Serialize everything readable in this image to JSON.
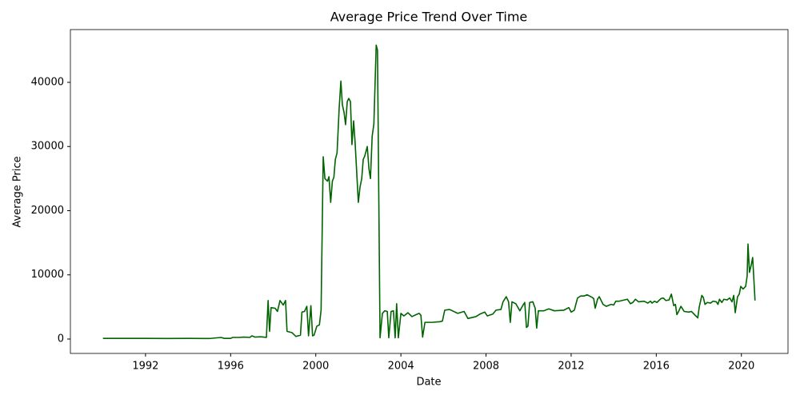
{
  "chart_data": {
    "type": "line",
    "title": "Average Price Trend Over Time",
    "x_label": "Date",
    "y_label": "Average Price",
    "color": "#006400",
    "x": [
      1990.0,
      1991.0,
      1992.0,
      1993.0,
      1994.0,
      1995.0,
      1995.55,
      1995.7,
      1996.0,
      1996.1,
      1996.4,
      1996.6,
      1996.9,
      1997.0,
      1997.15,
      1997.4,
      1997.55,
      1997.68,
      1997.76,
      1997.83,
      1997.9,
      1998.09,
      1998.2,
      1998.32,
      1998.47,
      1998.58,
      1998.65,
      1998.88,
      1999.07,
      1999.28,
      1999.35,
      1999.47,
      1999.58,
      1999.66,
      1999.77,
      1999.85,
      1999.92,
      2000.05,
      2000.17,
      2000.25,
      2000.35,
      2000.43,
      2000.55,
      2000.62,
      2000.7,
      2000.78,
      2000.85,
      2000.92,
      2001.0,
      2001.1,
      2001.18,
      2001.25,
      2001.33,
      2001.4,
      2001.48,
      2001.55,
      2001.63,
      2001.7,
      2001.78,
      2001.85,
      2002.0,
      2002.08,
      2002.16,
      2002.23,
      2002.3,
      2002.42,
      2002.5,
      2002.57,
      2002.65,
      2002.73,
      2002.84,
      2002.9,
      2003.02,
      2003.13,
      2003.24,
      2003.36,
      2003.43,
      2003.54,
      2003.65,
      2003.73,
      2003.8,
      2003.88,
      2004.0,
      2004.14,
      2004.33,
      2004.52,
      2004.71,
      2004.86,
      2004.94,
      2005.02,
      2005.13,
      2005.46,
      2005.84,
      2005.95,
      2006.06,
      2006.29,
      2006.67,
      2006.97,
      2007.15,
      2007.53,
      2007.72,
      2007.94,
      2008.06,
      2008.32,
      2008.47,
      2008.7,
      2008.8,
      2008.95,
      2009.06,
      2009.14,
      2009.22,
      2009.4,
      2009.59,
      2009.74,
      2009.82,
      2009.9,
      2009.97,
      2010.05,
      2010.2,
      2010.31,
      2010.38,
      2010.46,
      2010.72,
      2010.95,
      2011.21,
      2011.66,
      2011.89,
      2012.0,
      2012.15,
      2012.3,
      2012.45,
      2012.6,
      2012.75,
      2012.98,
      2013.06,
      2013.13,
      2013.24,
      2013.32,
      2013.5,
      2013.65,
      2013.88,
      2014.0,
      2014.1,
      2014.27,
      2014.38,
      2014.64,
      2014.79,
      2014.9,
      2015.02,
      2015.17,
      2015.43,
      2015.6,
      2015.73,
      2015.8,
      2015.92,
      2016.03,
      2016.22,
      2016.33,
      2016.45,
      2016.6,
      2016.71,
      2016.82,
      2016.9,
      2016.97,
      2017.05,
      2017.16,
      2017.31,
      2017.53,
      2017.65,
      2017.8,
      2017.95,
      2018.02,
      2018.14,
      2018.21,
      2018.29,
      2018.4,
      2018.55,
      2018.67,
      2018.82,
      2018.9,
      2018.97,
      2019.08,
      2019.18,
      2019.33,
      2019.45,
      2019.56,
      2019.64,
      2019.71,
      2019.82,
      2019.9,
      2019.97,
      2020.08,
      2020.2,
      2020.27,
      2020.31,
      2020.38,
      2020.46,
      2020.53,
      2020.64
    ],
    "values": [
      100,
      100,
      100,
      80,
      100,
      80,
      250,
      100,
      100,
      250,
      250,
      300,
      250,
      500,
      300,
      350,
      300,
      250,
      6000,
      1200,
      4900,
      4800,
      4300,
      6000,
      5300,
      6000,
      1200,
      1000,
      400,
      600,
      4200,
      4300,
      5100,
      500,
      5200,
      500,
      600,
      2000,
      2200,
      4500,
      28400,
      25000,
      24600,
      25300,
      21300,
      24600,
      25200,
      28000,
      29000,
      36000,
      40200,
      36500,
      35300,
      33400,
      37000,
      37500,
      37000,
      30300,
      34000,
      30500,
      21300,
      23700,
      25000,
      28000,
      28500,
      30000,
      26500,
      25000,
      31600,
      33500,
      45800,
      45000,
      200,
      4000,
      4400,
      4300,
      200,
      4300,
      4400,
      200,
      5500,
      200,
      4000,
      3600,
      4100,
      3500,
      3800,
      4000,
      3700,
      300,
      2600,
      2600,
      2700,
      2800,
      4500,
      4600,
      4000,
      4300,
      3200,
      3500,
      3900,
      4200,
      3600,
      3900,
      4500,
      4600,
      5800,
      6600,
      5800,
      2600,
      5800,
      5500,
      4400,
      5300,
      5700,
      1800,
      2000,
      5700,
      5800,
      4800,
      1700,
      4400,
      4400,
      4700,
      4400,
      4500,
      4900,
      4200,
      4500,
      6400,
      6700,
      6700,
      6900,
      6500,
      6300,
      4800,
      6200,
      6600,
      5400,
      5100,
      5400,
      5300,
      5900,
      5900,
      6000,
      6200,
      5500,
      5700,
      6200,
      5800,
      5900,
      5600,
      5900,
      5600,
      5900,
      5700,
      6300,
      6400,
      6000,
      6100,
      7000,
      5200,
      5400,
      3800,
      4300,
      5100,
      4300,
      4200,
      4300,
      3800,
      3300,
      5000,
      6800,
      6500,
      5400,
      5700,
      5600,
      5900,
      5800,
      5400,
      6200,
      5700,
      6200,
      6100,
      6400,
      5800,
      6800,
      4100,
      6600,
      7000,
      8200,
      7800,
      8200,
      9800,
      14800,
      10400,
      11500,
      12700,
      6000
    ],
    "xlim": [
      1988.47,
      2022.19
    ],
    "xticks": [
      1992,
      1996,
      2000,
      2004,
      2008,
      2012,
      2016,
      2020
    ],
    "ylim": [
      -2243,
      48224
    ],
    "yticks": [
      0,
      10000,
      20000,
      30000,
      40000
    ]
  }
}
